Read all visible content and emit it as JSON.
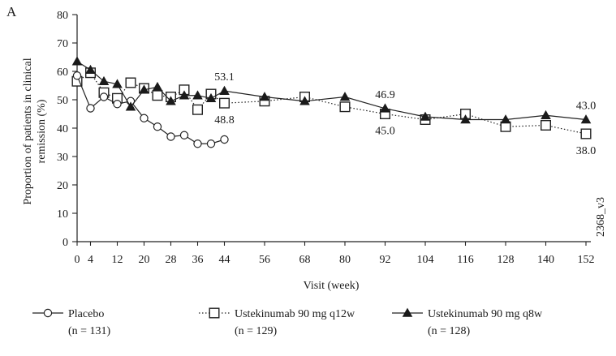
{
  "panel_label": "A",
  "side_label": "2368_v3",
  "chart_data": {
    "type": "line",
    "title": "",
    "xlabel": "Visit (week)",
    "ylabel": "Proportion of patients in clinical remission (%)",
    "ylim": [
      0,
      80
    ],
    "xlim": [
      0,
      152
    ],
    "x_ticks": [
      0,
      4,
      12,
      20,
      28,
      36,
      44,
      56,
      68,
      80,
      92,
      104,
      116,
      128,
      140,
      152
    ],
    "y_ticks": [
      0,
      10,
      20,
      30,
      40,
      50,
      60,
      70,
      80
    ],
    "grid": false,
    "legend_position": "bottom",
    "series": [
      {
        "name": "Placebo",
        "n_label": "(n = 131)",
        "marker": "open-circle",
        "line_style": "solid",
        "color": "#222222",
        "points": [
          [
            0,
            58.5
          ],
          [
            4,
            47
          ],
          [
            8,
            51
          ],
          [
            12,
            48.5
          ],
          [
            16,
            49.5
          ],
          [
            20,
            43.5
          ],
          [
            24,
            40.5
          ],
          [
            28,
            37
          ],
          [
            32,
            37.5
          ],
          [
            36,
            34.5
          ],
          [
            40,
            34.5
          ],
          [
            44,
            36
          ]
        ]
      },
      {
        "name": "Ustekinumab 90 mg q12w",
        "n_label": "(n = 129)",
        "marker": "open-square",
        "line_style": "dotted",
        "color": "#222222",
        "points": [
          [
            0,
            56.5
          ],
          [
            4,
            59.5
          ],
          [
            8,
            52.5
          ],
          [
            12,
            50.5
          ],
          [
            16,
            56
          ],
          [
            20,
            54
          ],
          [
            24,
            51.5
          ],
          [
            28,
            51
          ],
          [
            32,
            53.5
          ],
          [
            36,
            46.5
          ],
          [
            40,
            52
          ],
          [
            44,
            48.8
          ],
          [
            56,
            49.5
          ],
          [
            68,
            51
          ],
          [
            80,
            47.5
          ],
          [
            92,
            45.0
          ],
          [
            104,
            43
          ],
          [
            116,
            45
          ],
          [
            128,
            40.5
          ],
          [
            140,
            41
          ],
          [
            152,
            38.0
          ]
        ]
      },
      {
        "name": "Ustekinumab 90 mg q8w",
        "n_label": "(n = 128)",
        "marker": "filled-triangle",
        "line_style": "solid",
        "color": "#222222",
        "points": [
          [
            0,
            63.5
          ],
          [
            4,
            60.5
          ],
          [
            8,
            56.5
          ],
          [
            12,
            55.5
          ],
          [
            16,
            47.5
          ],
          [
            20,
            53.5
          ],
          [
            24,
            54.5
          ],
          [
            28,
            49.5
          ],
          [
            32,
            51.5
          ],
          [
            36,
            51.5
          ],
          [
            40,
            50.5
          ],
          [
            44,
            53.1
          ],
          [
            56,
            51
          ],
          [
            68,
            49.5
          ],
          [
            80,
            51
          ],
          [
            92,
            46.9
          ],
          [
            104,
            44
          ],
          [
            116,
            43
          ],
          [
            128,
            43
          ],
          [
            140,
            44.5
          ],
          [
            152,
            43.0
          ]
        ]
      }
    ],
    "annotations": [
      {
        "text": "53.1",
        "x": 44,
        "y": 53.1,
        "anchor": "above"
      },
      {
        "text": "48.8",
        "x": 44,
        "y": 48.8,
        "anchor": "below"
      },
      {
        "text": "46.9",
        "x": 92,
        "y": 46.9,
        "anchor": "above"
      },
      {
        "text": "45.0",
        "x": 92,
        "y": 45.0,
        "anchor": "below"
      },
      {
        "text": "43.0",
        "x": 152,
        "y": 43.0,
        "anchor": "above"
      },
      {
        "text": "38.0",
        "x": 152,
        "y": 38.0,
        "anchor": "below"
      }
    ]
  }
}
